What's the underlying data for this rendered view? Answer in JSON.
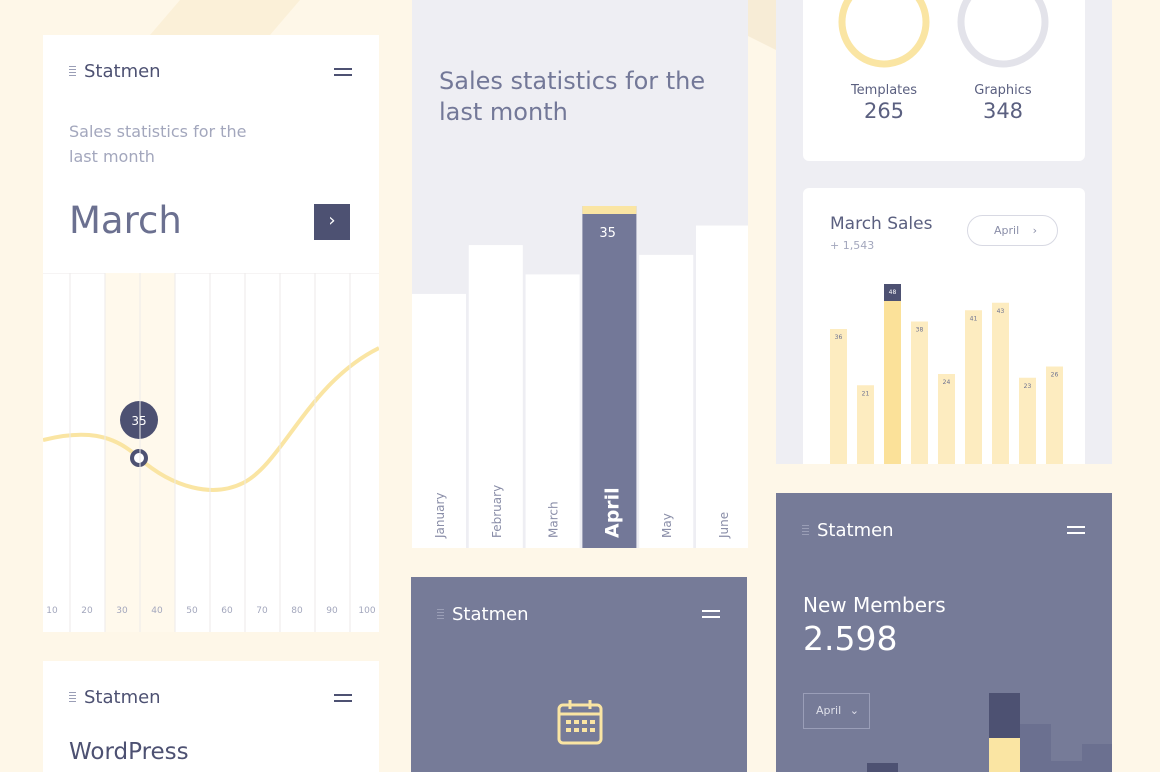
{
  "stat_card": {
    "brand": "Statmen",
    "subtitle": "Sales statistics for the last month",
    "month": "March",
    "x_ticks": [
      10,
      20,
      30,
      40,
      50,
      60,
      70,
      80,
      90,
      100
    ],
    "marker_label": "35"
  },
  "month_card": {
    "title": "Sales statistics for the last month",
    "chart": {
      "type": "bar",
      "categories": [
        "January",
        "February",
        "March",
        "April",
        "May",
        "June"
      ],
      "values": [
        26,
        31,
        28,
        35,
        30,
        33
      ],
      "ylim": [
        0,
        35
      ],
      "highlight": 3,
      "color": "#ffffff",
      "highlight_color": "#737898"
    }
  },
  "totals_card": {
    "items": [
      {
        "label": "Templates",
        "value": "265"
      },
      {
        "label": "Graphics",
        "value": "348"
      }
    ]
  },
  "sales_card": {
    "title": "March Sales",
    "delta": "+ 1,543",
    "button": "April",
    "chart": {
      "type": "bar",
      "values": [
        36,
        21,
        48,
        38,
        24,
        41,
        43,
        23,
        26
      ],
      "ylim": [
        0,
        48
      ],
      "highlight": 2,
      "color": "#fdecc0",
      "highlight_color": "#fbe199"
    }
  },
  "members_card": {
    "brand": "Statmen",
    "title": "New Members",
    "value": "2.598",
    "dropdown": "April"
  },
  "calendar_card": {
    "brand": "Statmen"
  },
  "wp_card": {
    "brand": "Statmen",
    "title": "WordPress"
  }
}
